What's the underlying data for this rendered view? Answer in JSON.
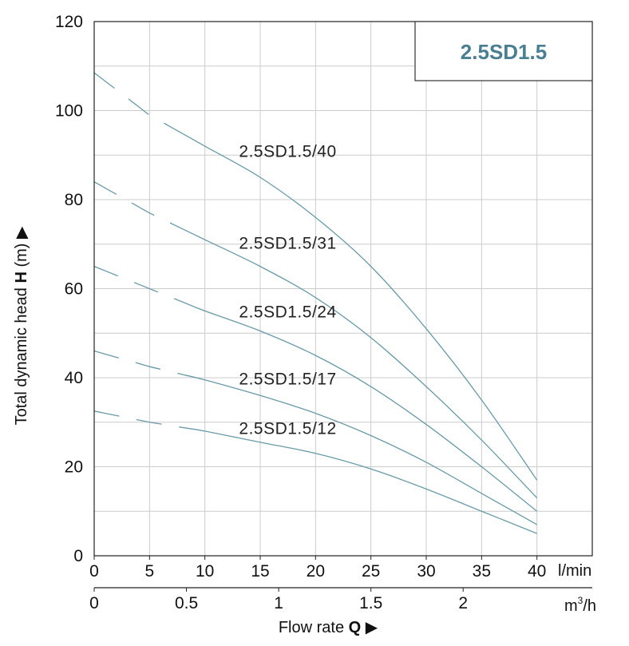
{
  "chart_data": {
    "type": "line",
    "title": "2.5SD1.5",
    "ylabel": "Total dynamic head",
    "ylabel_symbol": "H",
    "ylabel_unit": "(m)",
    "xlabel": "Flow rate",
    "xlabel_symbol": "Q",
    "ylim": [
      0,
      120
    ],
    "xlim": [
      0,
      45
    ],
    "yticks": [
      "0",
      "20",
      "40",
      "60",
      "80",
      "100",
      "120"
    ],
    "xticks_lmin": [
      "0",
      "5",
      "10",
      "15",
      "20",
      "25",
      "30",
      "35",
      "40"
    ],
    "x_unit_lmin": "l/min",
    "xticks_m3h": [
      "0",
      "0.5",
      "1",
      "1.5",
      "2"
    ],
    "x_unit_m3h_base": "m",
    "x_unit_m3h_sup": "3",
    "x_unit_m3h_tail": "/h",
    "grid": true,
    "curve_color": "#6a9aa6",
    "title_color": "#4a7f92",
    "dashed_until_x": 8,
    "series": [
      {
        "name": "2.5SD1.5/40",
        "x": [
          0,
          5,
          10,
          15,
          20,
          25,
          30,
          35,
          40
        ],
        "y": [
          108.5,
          99,
          92,
          85,
          76,
          65,
          51,
          35,
          17
        ]
      },
      {
        "name": "2.5SD1.5/31",
        "x": [
          0,
          5,
          10,
          15,
          20,
          25,
          30,
          35,
          40
        ],
        "y": [
          84,
          77,
          71,
          65,
          58,
          49,
          38,
          26,
          13
        ]
      },
      {
        "name": "2.5SD1.5/24",
        "x": [
          0,
          5,
          10,
          15,
          20,
          25,
          30,
          35,
          40
        ],
        "y": [
          65,
          60,
          55,
          50.5,
          45,
          38,
          29.5,
          20,
          10
        ]
      },
      {
        "name": "2.5SD1.5/17",
        "x": [
          0,
          5,
          10,
          15,
          20,
          25,
          30,
          35,
          40
        ],
        "y": [
          46,
          42.5,
          39.5,
          36,
          32,
          27,
          21,
          14,
          7
        ]
      },
      {
        "name": "2.5SD1.5/12",
        "x": [
          0,
          5,
          10,
          15,
          20,
          25,
          30,
          35,
          40
        ],
        "y": [
          32.5,
          30,
          28,
          25.5,
          23,
          19.5,
          15,
          10,
          5
        ]
      }
    ]
  }
}
